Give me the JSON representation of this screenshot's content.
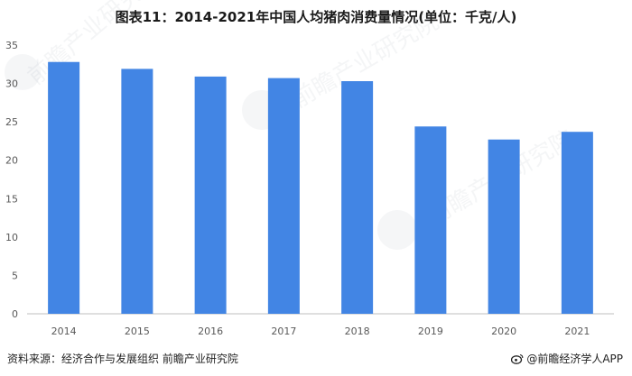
{
  "chart_data": {
    "type": "bar",
    "title": "图表11：2014-2021年中国人均猪肉消费量情况(单位：千克/人)",
    "categories": [
      "2014",
      "2015",
      "2016",
      "2017",
      "2018",
      "2019",
      "2020",
      "2021"
    ],
    "values": [
      32.8,
      31.9,
      30.9,
      30.7,
      30.3,
      24.4,
      22.7,
      23.7
    ],
    "ylim": [
      0,
      35
    ],
    "yticks": [
      0,
      5,
      10,
      15,
      20,
      25,
      30,
      35
    ],
    "grid": false,
    "bar_color": "#4285e4"
  },
  "watermark_text": "前瞻产业研究院",
  "footer": {
    "source": "资料来源：经济合作与发展组织 前瞻产业研究院",
    "brand": "@前瞻经济学人APP"
  }
}
